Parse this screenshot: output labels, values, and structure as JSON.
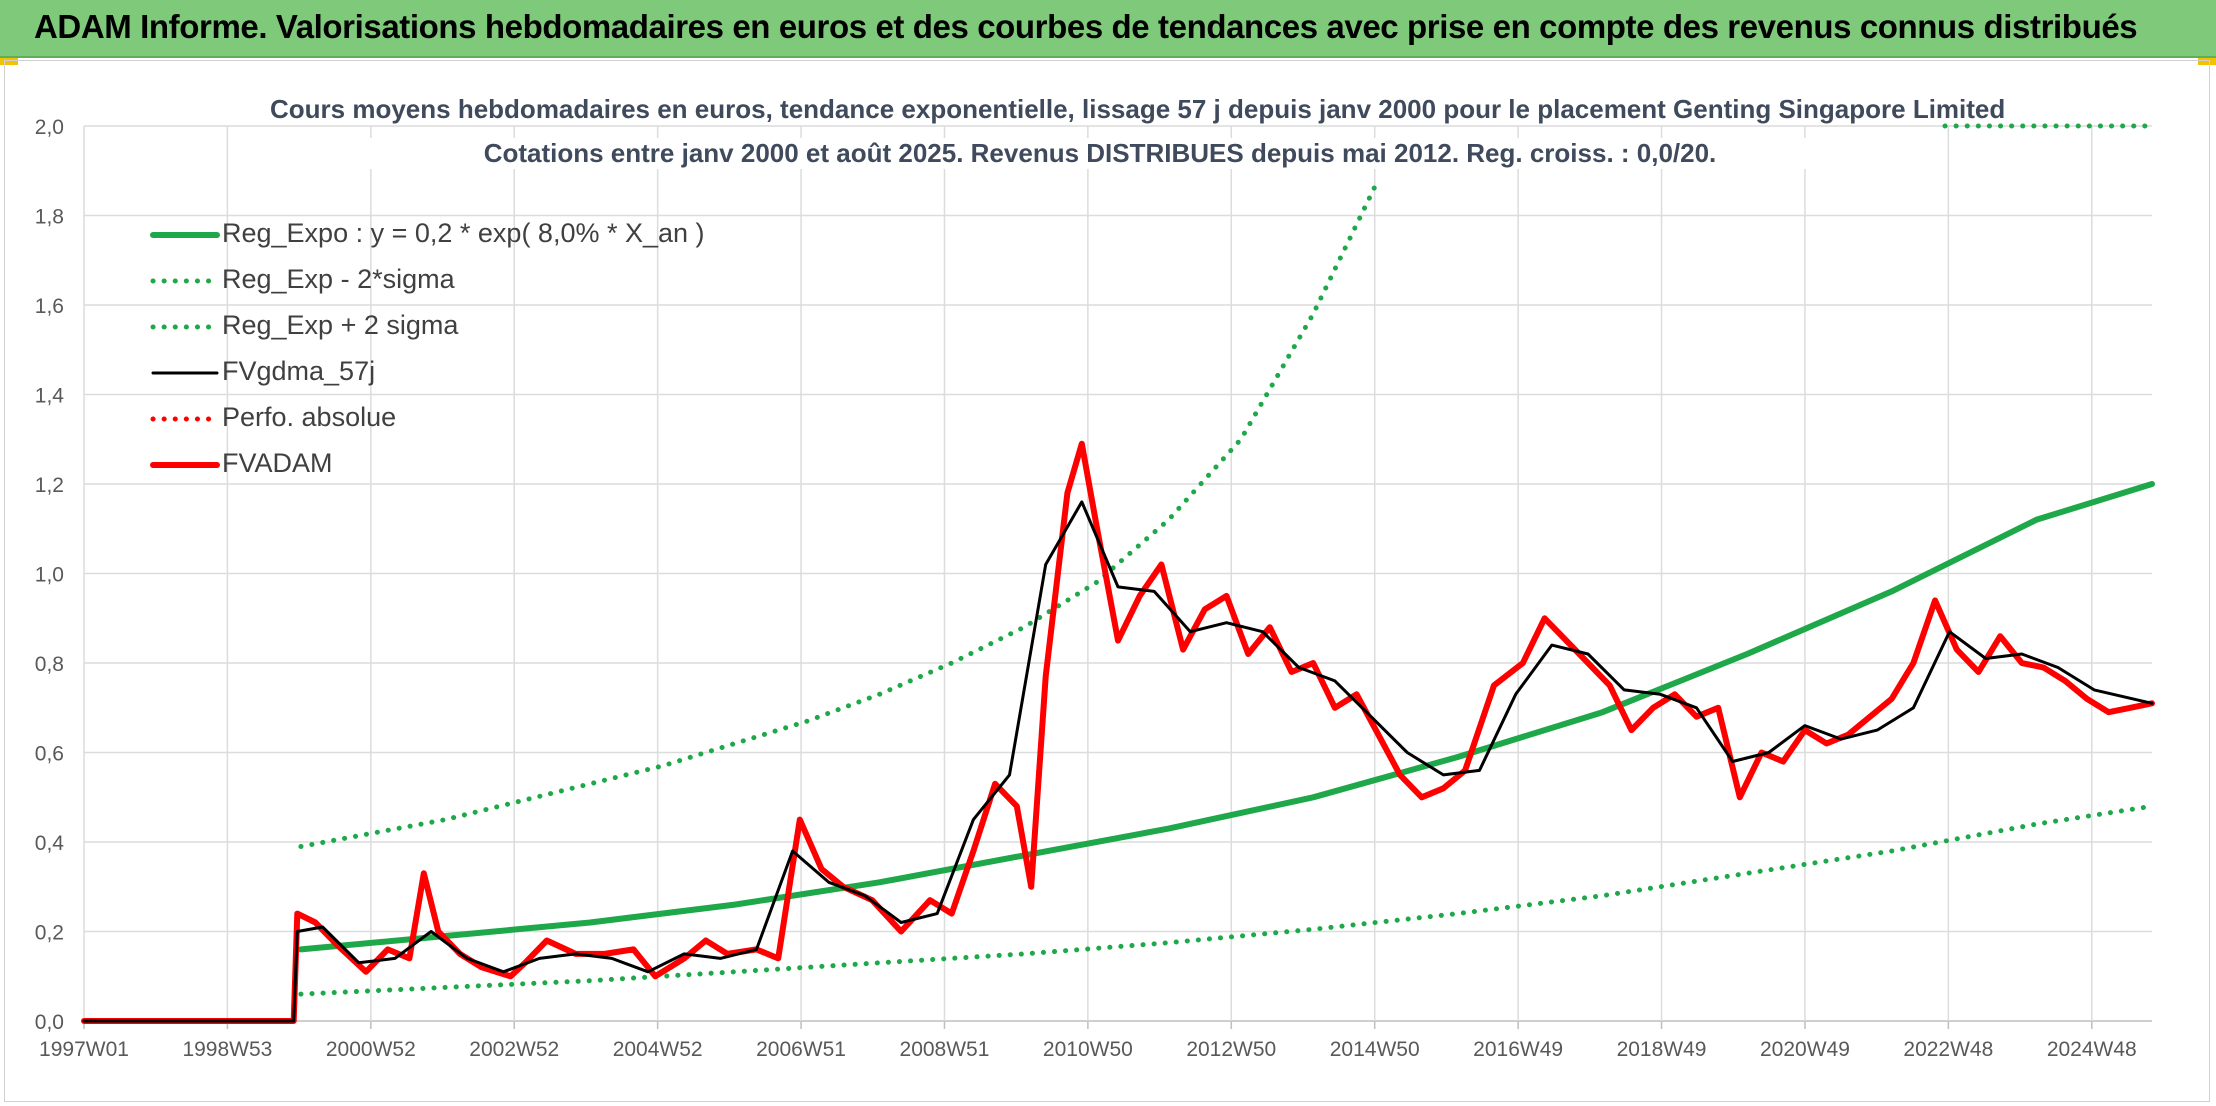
{
  "banner": {
    "title": "ADAM Informe. Valorisations hebdomadaires en euros et des courbes de tendances avec prise en compte des revenus connus distribués"
  },
  "chart_data": {
    "type": "line",
    "title": "Cours moyens hebdomadaires en euros, tendance exponentielle, lissage 57 j depuis janv 2000 pour le placement Genting Singapore Limited",
    "subtitle": "Cotations entre janv 2000 et août 2025. Revenus DISTRIBUES depuis mai 2012. Reg. croiss. : 0,0/20.",
    "xlabel": "",
    "ylabel": "",
    "x_ticks": [
      "1997W01",
      "1998W53",
      "2000W52",
      "2002W52",
      "2004W52",
      "2006W51",
      "2008W51",
      "2010W50",
      "2012W50",
      "2014W50",
      "2016W49",
      "2018W49",
      "2020W49",
      "2022W48",
      "2024W48"
    ],
    "xlim": [
      1997.0,
      2025.6
    ],
    "ylim": [
      0,
      2
    ],
    "y_ticks": [
      "0,0",
      "0,2",
      "0,4",
      "0,6",
      "0,8",
      "1,0",
      "1,2",
      "1,4",
      "1,6",
      "1,8",
      "2,0"
    ],
    "grid": true,
    "legend_position": "top-left",
    "series": [
      {
        "name": "Reg_Expo : y = 0,2 * exp( 8,0% *  X_an )",
        "style": "solid-thick",
        "color": "#1ea84a",
        "x": [
          2000.0,
          2002.0,
          2004.0,
          2006.0,
          2008.0,
          2010.0,
          2012.0,
          2014.0,
          2016.0,
          2018.0,
          2020.0,
          2022.0,
          2024.0,
          2025.6
        ],
        "y": [
          0.16,
          0.19,
          0.22,
          0.26,
          0.31,
          0.37,
          0.43,
          0.5,
          0.59,
          0.69,
          0.82,
          0.96,
          1.12,
          1.2
        ]
      },
      {
        "name": "Reg_Exp - 2*sigma",
        "style": "dotted",
        "color": "#1ea84a",
        "x": [
          2000.0,
          2002.0,
          2004.0,
          2006.0,
          2008.0,
          2010.0,
          2012.0,
          2014.0,
          2016.0,
          2018.0,
          2020.0,
          2022.0,
          2024.0,
          2025.6
        ],
        "y": [
          0.06,
          0.075,
          0.09,
          0.11,
          0.13,
          0.15,
          0.175,
          0.205,
          0.24,
          0.28,
          0.33,
          0.38,
          0.44,
          0.48
        ]
      },
      {
        "name": "Reg_Exp + 2 sigma",
        "style": "dotted",
        "color": "#1ea84a",
        "x": [
          2000.0,
          2001.0,
          2002.0,
          2003.0,
          2004.0,
          2005.0,
          2006.0,
          2007.0,
          2008.0,
          2009.0,
          2010.0,
          2011.0,
          2012.0,
          2013.0,
          2014.0,
          2014.9
        ],
        "y": [
          0.39,
          0.42,
          0.45,
          0.49,
          0.53,
          0.57,
          0.62,
          0.67,
          0.73,
          0.8,
          0.88,
          0.98,
          1.12,
          1.3,
          1.58,
          1.88
        ]
      },
      {
        "name": "FVgdma_57j",
        "style": "solid",
        "color": "#000000",
        "x": [
          1997.0,
          1999.9,
          1999.95,
          2000.3,
          2000.8,
          2001.3,
          2001.8,
          2002.3,
          2002.8,
          2003.3,
          2003.8,
          2004.3,
          2004.8,
          2005.3,
          2005.8,
          2006.3,
          2006.8,
          2007.3,
          2007.8,
          2008.3,
          2008.8,
          2009.3,
          2009.8,
          2010.3,
          2010.8,
          2011.3,
          2011.8,
          2012.3,
          2012.8,
          2013.3,
          2013.8,
          2014.3,
          2014.8,
          2015.3,
          2015.8,
          2016.3,
          2016.8,
          2017.3,
          2017.8,
          2018.3,
          2018.8,
          2019.3,
          2019.8,
          2020.3,
          2020.8,
          2021.3,
          2021.8,
          2022.3,
          2022.8,
          2023.3,
          2023.8,
          2024.3,
          2024.8,
          2025.6
        ],
        "y": [
          0,
          0,
          0.2,
          0.21,
          0.13,
          0.14,
          0.2,
          0.14,
          0.11,
          0.14,
          0.15,
          0.14,
          0.11,
          0.15,
          0.14,
          0.16,
          0.38,
          0.31,
          0.28,
          0.22,
          0.24,
          0.45,
          0.55,
          1.02,
          1.16,
          0.97,
          0.96,
          0.87,
          0.89,
          0.87,
          0.79,
          0.76,
          0.68,
          0.6,
          0.55,
          0.56,
          0.73,
          0.84,
          0.82,
          0.74,
          0.73,
          0.7,
          0.58,
          0.6,
          0.66,
          0.63,
          0.65,
          0.7,
          0.87,
          0.81,
          0.82,
          0.79,
          0.74,
          0.71
        ]
      },
      {
        "name": "Perfo. absolue",
        "style": "dotted",
        "color": "#ff0000",
        "x": [],
        "y": []
      },
      {
        "name": "FVADAM",
        "style": "solid-thick",
        "color": "#ff0000",
        "x": [
          1997.0,
          1999.9,
          1999.95,
          2000.2,
          2000.5,
          2000.9,
          2001.2,
          2001.5,
          2001.7,
          2001.9,
          2002.2,
          2002.5,
          2002.9,
          2003.1,
          2003.4,
          2003.8,
          2004.2,
          2004.6,
          2004.9,
          2005.3,
          2005.6,
          2005.9,
          2006.3,
          2006.6,
          2006.9,
          2007.2,
          2007.5,
          2007.9,
          2008.3,
          2008.7,
          2009.0,
          2009.3,
          2009.6,
          2009.9,
          2010.1,
          2010.3,
          2010.6,
          2010.8,
          2011.0,
          2011.3,
          2011.6,
          2011.9,
          2012.2,
          2012.5,
          2012.8,
          2013.1,
          2013.4,
          2013.7,
          2014.0,
          2014.3,
          2014.6,
          2014.9,
          2015.2,
          2015.5,
          2015.8,
          2016.1,
          2016.5,
          2016.9,
          2017.2,
          2017.5,
          2017.8,
          2018.1,
          2018.4,
          2018.7,
          2019.0,
          2019.3,
          2019.6,
          2019.9,
          2020.2,
          2020.5,
          2020.8,
          2021.1,
          2021.4,
          2021.7,
          2022.0,
          2022.3,
          2022.6,
          2022.9,
          2023.2,
          2023.5,
          2023.8,
          2024.1,
          2024.4,
          2024.7,
          2025.0,
          2025.3,
          2025.6
        ],
        "y": [
          0,
          0,
          0.24,
          0.22,
          0.17,
          0.11,
          0.16,
          0.14,
          0.33,
          0.2,
          0.15,
          0.12,
          0.1,
          0.13,
          0.18,
          0.15,
          0.15,
          0.16,
          0.1,
          0.14,
          0.18,
          0.15,
          0.16,
          0.14,
          0.45,
          0.34,
          0.3,
          0.27,
          0.2,
          0.27,
          0.24,
          0.38,
          0.53,
          0.48,
          0.3,
          0.77,
          1.18,
          1.29,
          1.11,
          0.85,
          0.95,
          1.02,
          0.83,
          0.92,
          0.95,
          0.82,
          0.88,
          0.78,
          0.8,
          0.7,
          0.73,
          0.64,
          0.55,
          0.5,
          0.52,
          0.56,
          0.75,
          0.8,
          0.9,
          0.85,
          0.8,
          0.75,
          0.65,
          0.7,
          0.73,
          0.68,
          0.7,
          0.5,
          0.6,
          0.58,
          0.65,
          0.62,
          0.64,
          0.68,
          0.72,
          0.8,
          0.94,
          0.83,
          0.78,
          0.86,
          0.8,
          0.79,
          0.76,
          0.72,
          0.69,
          0.7,
          0.71
        ]
      }
    ]
  }
}
